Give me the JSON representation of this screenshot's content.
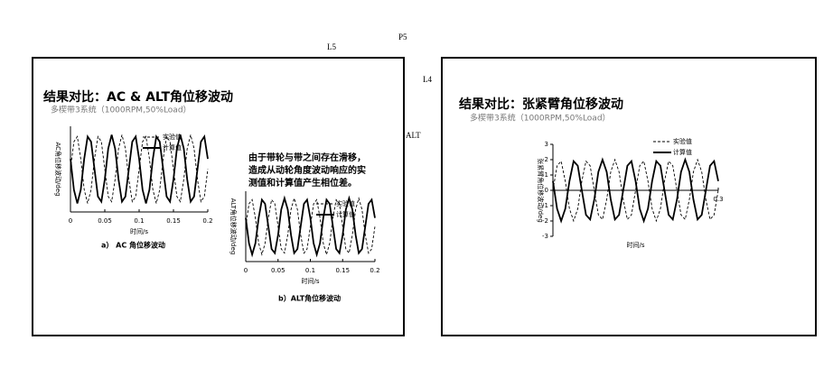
{
  "labels": {
    "p5": "P5",
    "l5": "L5",
    "l4": "L4",
    "alt": "ALT"
  },
  "slides": [
    {
      "title": "结果对比：AC & ALT角位移波动",
      "subtitle": "多楔带3系统（1000RPM,50%Load）",
      "captions": [
        "a） AC 角位移波动",
        "b）ALT角位移波动"
      ],
      "note": [
        "由于带轮与带之间存在滑移，",
        "造成从动轮角度波动响应的实",
        "测值和计算值产生相位差。"
      ]
    },
    {
      "title": "结果对比：张紧臂角位移波动",
      "subtitle": "多楔带3系统（1000RPM,50%Load）"
    }
  ],
  "chart_data": [
    {
      "type": "line",
      "x_label": "时间/s",
      "y_label": "AC角位移波动/deg",
      "x": [
        0,
        0.005,
        0.01,
        0.015,
        0.02,
        0.025,
        0.03,
        0.035,
        0.04,
        0.045,
        0.05,
        0.055,
        0.06,
        0.065,
        0.07,
        0.075,
        0.08,
        0.085,
        0.09,
        0.095,
        0.1,
        0.105,
        0.11,
        0.115,
        0.12,
        0.125,
        0.13,
        0.135,
        0.14,
        0.145,
        0.15,
        0.155,
        0.16,
        0.165,
        0.17,
        0.175,
        0.18,
        0.185,
        0.19,
        0.195,
        0.2
      ],
      "xlim": [
        0,
        0.2
      ],
      "xticks": [
        0,
        0.05,
        0.1,
        0.15,
        0.2
      ],
      "ylim": [
        -2.5,
        2.5
      ],
      "series": [
        {
          "name": "实验值",
          "color": "#000000",
          "style": "dashed",
          "values": [
            0,
            1.6,
            1.9,
            0.6,
            -1.2,
            -2,
            -1.2,
            0.6,
            1.9,
            1.6,
            0,
            -1.6,
            -1.9,
            -0.6,
            1.2,
            2,
            1.2,
            -0.6,
            -1.9,
            -1.6,
            0,
            1.6,
            1.9,
            0.6,
            -1.2,
            -2,
            -1.2,
            0.6,
            1.9,
            1.6,
            0,
            -1.6,
            -1.9,
            -0.6,
            1.2,
            2,
            1.2,
            -0.6,
            -1.9,
            -1.6,
            0
          ]
        },
        {
          "name": "计算值",
          "color": "#000000",
          "style": "solid",
          "values": [
            0.6,
            -1.2,
            -2,
            -1.2,
            0.6,
            1.9,
            1.6,
            0,
            -1.6,
            -1.9,
            -0.6,
            1.2,
            2,
            1.2,
            -0.6,
            -1.9,
            -1.6,
            0,
            1.6,
            1.9,
            0.6,
            -1.2,
            -2,
            -1.2,
            0.6,
            1.9,
            1.6,
            0,
            -1.6,
            -1.9,
            -0.6,
            1.2,
            2,
            1.2,
            -0.6,
            -1.9,
            -1.6,
            0,
            1.6,
            1.9,
            0.6
          ]
        }
      ]
    },
    {
      "type": "line",
      "x_label": "时间/s",
      "y_label": "ALT角位移波动/deg",
      "x": [
        0,
        0.005,
        0.01,
        0.015,
        0.02,
        0.025,
        0.03,
        0.035,
        0.04,
        0.045,
        0.05,
        0.055,
        0.06,
        0.065,
        0.07,
        0.075,
        0.08,
        0.085,
        0.09,
        0.095,
        0.1,
        0.105,
        0.11,
        0.115,
        0.12,
        0.125,
        0.13,
        0.135,
        0.14,
        0.145,
        0.15,
        0.155,
        0.16,
        0.165,
        0.17,
        0.175,
        0.18,
        0.185,
        0.19,
        0.195,
        0.2
      ],
      "xlim": [
        0,
        0.2
      ],
      "xticks": [
        0,
        0.05,
        0.1,
        0.15,
        0.2
      ],
      "ylim": [
        -2.5,
        2.5
      ],
      "series": [
        {
          "name": "实验值",
          "color": "#000000",
          "style": "dashed",
          "values": [
            0,
            1.6,
            1.9,
            0.6,
            -1.2,
            -2,
            -1.2,
            0.6,
            1.9,
            1.6,
            0,
            -1.6,
            -1.9,
            -0.6,
            1.2,
            2,
            1.2,
            -0.6,
            -1.9,
            -1.6,
            0,
            1.6,
            1.9,
            0.6,
            -1.2,
            -2,
            -1.2,
            0.6,
            1.9,
            1.6,
            0,
            -1.6,
            -1.9,
            -0.6,
            1.2,
            2,
            1.2,
            -0.6,
            -1.9,
            -1.6,
            0
          ]
        },
        {
          "name": "计算值",
          "color": "#000000",
          "style": "solid",
          "values": [
            0.6,
            -1.2,
            -2,
            -1.2,
            0.6,
            1.9,
            1.6,
            0,
            -1.6,
            -1.9,
            -0.6,
            1.2,
            2,
            1.2,
            -0.6,
            -1.9,
            -1.6,
            0,
            1.6,
            1.9,
            0.6,
            -1.2,
            -2,
            -1.2,
            0.6,
            1.9,
            1.6,
            0,
            -1.6,
            -1.9,
            -0.6,
            1.2,
            2,
            1.2,
            -0.6,
            -1.9,
            -1.6,
            0,
            1.6,
            1.9,
            0.6
          ]
        }
      ]
    },
    {
      "type": "line",
      "x_label": "时间/s",
      "y_label": "张紧臂角位移波动/deg",
      "x": [
        0,
        0.0075,
        0.015,
        0.0225,
        0.03,
        0.0375,
        0.045,
        0.0525,
        0.06,
        0.0675,
        0.075,
        0.0825,
        0.09,
        0.0975,
        0.105,
        0.1125,
        0.12,
        0.1275,
        0.135,
        0.1425,
        0.15,
        0.1575,
        0.165,
        0.1725,
        0.18,
        0.1875,
        0.195,
        0.2025,
        0.21,
        0.2175,
        0.225,
        0.2325,
        0.24,
        0.2475,
        0.255,
        0.2625,
        0.27,
        0.2775,
        0.285,
        0.2925,
        0.3
      ],
      "xlim": [
        0,
        0.3
      ],
      "xticks": [
        0.3
      ],
      "ylim": [
        -3,
        3
      ],
      "yticks": [
        3,
        2,
        1,
        0,
        -1,
        -2,
        -3
      ],
      "series": [
        {
          "name": "实验值",
          "color": "#000000",
          "style": "dashed",
          "values": [
            0,
            1.6,
            1.9,
            0.6,
            -1.2,
            -2,
            -1.2,
            0.6,
            1.9,
            1.6,
            0,
            -1.6,
            -1.9,
            -0.6,
            1.2,
            2,
            1.2,
            -0.6,
            -1.9,
            -1.6,
            0,
            1.6,
            1.9,
            0.6,
            -1.2,
            -2,
            -1.2,
            0.6,
            1.9,
            1.6,
            0,
            -1.6,
            -1.9,
            -0.6,
            1.2,
            2,
            1.2,
            -0.6,
            -1.9,
            -1.6,
            0
          ]
        },
        {
          "name": "计算值",
          "color": "#000000",
          "style": "solid",
          "values": [
            0.6,
            -1.2,
            -2,
            -1.2,
            0.6,
            1.9,
            1.6,
            0,
            -1.6,
            -1.9,
            -0.6,
            1.2,
            2,
            1.2,
            -0.6,
            -1.9,
            -1.6,
            0,
            1.6,
            1.9,
            0.6,
            -1.2,
            -2,
            -1.2,
            0.6,
            1.9,
            1.6,
            0,
            -1.6,
            -1.9,
            -0.6,
            1.2,
            2,
            1.2,
            -0.6,
            -1.9,
            -1.6,
            0,
            1.6,
            1.9,
            0.6
          ]
        }
      ]
    }
  ]
}
